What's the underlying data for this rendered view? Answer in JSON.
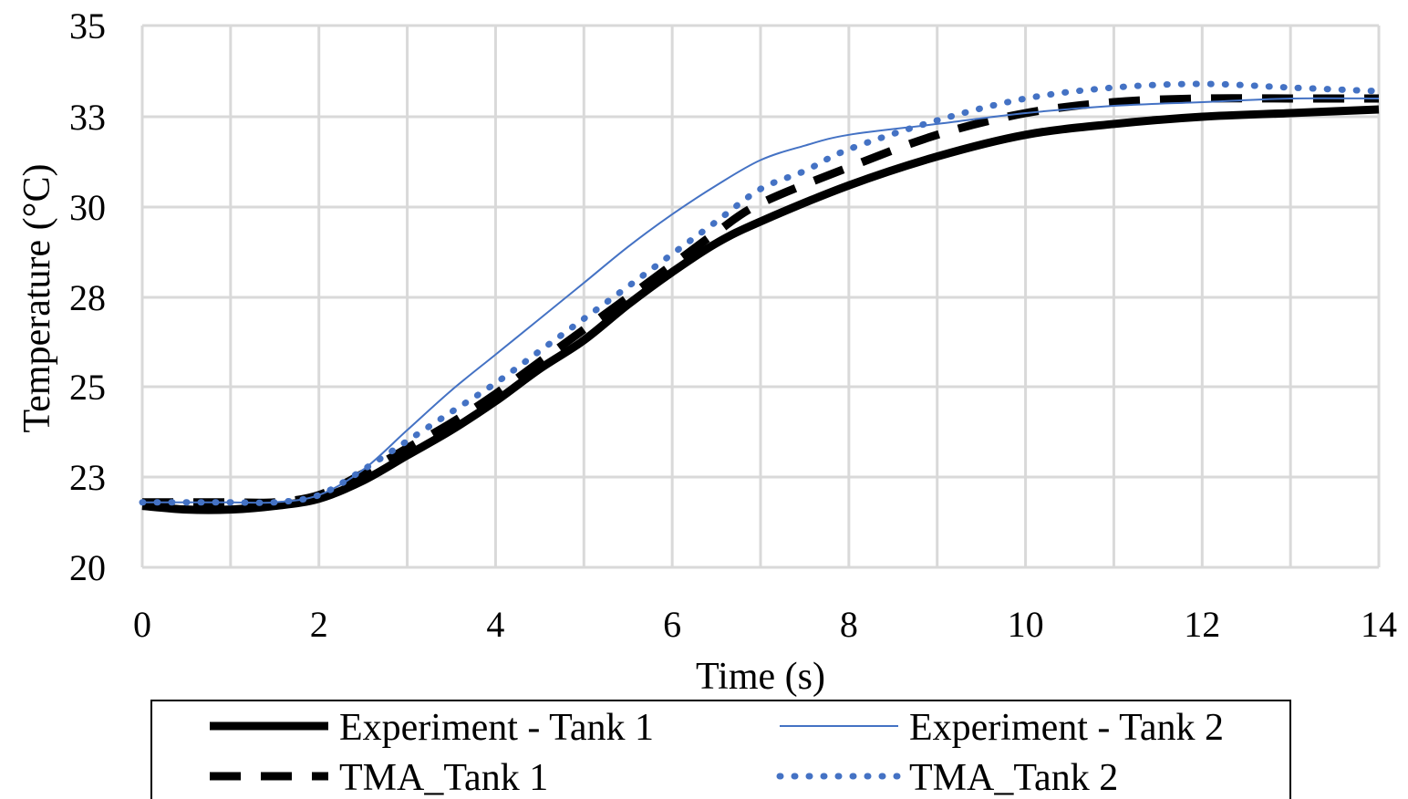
{
  "chart_data": {
    "type": "line",
    "xlabel": "Time (s)",
    "ylabel": "Temperature (°C)",
    "xlim": [
      0,
      14
    ],
    "ylim": [
      20,
      35
    ],
    "x_ticks": [
      "0",
      "2",
      "4",
      "6",
      "8",
      "10",
      "12",
      "14"
    ],
    "y_ticks": [
      "20",
      "23",
      "25",
      "28",
      "30",
      "33",
      "35"
    ],
    "grid": true,
    "legend_position": "bottom",
    "series": [
      {
        "name": "Experiment - Tank 1",
        "color": "#000000",
        "style": "solid-thick",
        "points": [
          [
            0,
            21.7
          ],
          [
            0.5,
            21.6
          ],
          [
            1,
            21.6
          ],
          [
            1.5,
            21.7
          ],
          [
            2,
            21.9
          ],
          [
            2.5,
            22.4
          ],
          [
            3,
            23.1
          ],
          [
            3.5,
            23.8
          ],
          [
            4,
            24.6
          ],
          [
            4.5,
            25.5
          ],
          [
            5,
            26.3
          ],
          [
            5.5,
            27.3
          ],
          [
            6,
            28.2
          ],
          [
            6.5,
            29.0
          ],
          [
            7,
            29.6
          ],
          [
            8,
            30.6
          ],
          [
            9,
            31.4
          ],
          [
            10,
            32.0
          ],
          [
            11,
            32.3
          ],
          [
            12,
            32.5
          ],
          [
            13,
            32.6
          ],
          [
            14,
            32.7
          ]
        ]
      },
      {
        "name": "Experiment - Tank 2",
        "color": "#4472C4",
        "style": "solid-thin",
        "points": [
          [
            0,
            21.8
          ],
          [
            0.5,
            21.8
          ],
          [
            1,
            21.8
          ],
          [
            1.5,
            21.8
          ],
          [
            2,
            22.0
          ],
          [
            2.5,
            22.7
          ],
          [
            3,
            23.8
          ],
          [
            3.5,
            24.9
          ],
          [
            4,
            25.9
          ],
          [
            4.5,
            26.9
          ],
          [
            5,
            27.9
          ],
          [
            5.5,
            28.9
          ],
          [
            6,
            29.8
          ],
          [
            6.5,
            30.6
          ],
          [
            7,
            31.3
          ],
          [
            7.5,
            31.7
          ],
          [
            8,
            32.0
          ],
          [
            9,
            32.3
          ],
          [
            10,
            32.6
          ],
          [
            11,
            32.8
          ],
          [
            12,
            32.9
          ],
          [
            13,
            33.0
          ],
          [
            14,
            33.0
          ]
        ]
      },
      {
        "name": "TMA_Tank 1",
        "color": "#000000",
        "style": "dashed",
        "points": [
          [
            0,
            21.8
          ],
          [
            0.5,
            21.8
          ],
          [
            1,
            21.8
          ],
          [
            1.5,
            21.8
          ],
          [
            2,
            22.0
          ],
          [
            2.5,
            22.6
          ],
          [
            3,
            23.3
          ],
          [
            3.5,
            24.0
          ],
          [
            4,
            24.8
          ],
          [
            4.5,
            25.7
          ],
          [
            5,
            26.6
          ],
          [
            5.5,
            27.5
          ],
          [
            6,
            28.4
          ],
          [
            6.5,
            29.3
          ],
          [
            7,
            30.1
          ],
          [
            8,
            31.1
          ],
          [
            9,
            32.0
          ],
          [
            10,
            32.6
          ],
          [
            11,
            32.9
          ],
          [
            12,
            33.0
          ],
          [
            13,
            33.0
          ],
          [
            14,
            33.0
          ]
        ]
      },
      {
        "name": "TMA_Tank 2",
        "color": "#4472C4",
        "style": "dotted",
        "points": [
          [
            0,
            21.8
          ],
          [
            0.5,
            21.8
          ],
          [
            1,
            21.8
          ],
          [
            1.5,
            21.8
          ],
          [
            2,
            22.0
          ],
          [
            2.5,
            22.7
          ],
          [
            3,
            23.5
          ],
          [
            3.5,
            24.3
          ],
          [
            4,
            25.1
          ],
          [
            4.5,
            26.0
          ],
          [
            5,
            26.9
          ],
          [
            5.5,
            27.8
          ],
          [
            6,
            28.7
          ],
          [
            6.5,
            29.6
          ],
          [
            7,
            30.5
          ],
          [
            7.5,
            31.0
          ],
          [
            8,
            31.6
          ],
          [
            9,
            32.4
          ],
          [
            10,
            33.0
          ],
          [
            11,
            33.3
          ],
          [
            12,
            33.4
          ],
          [
            13,
            33.3
          ],
          [
            14,
            33.2
          ]
        ]
      }
    ]
  }
}
